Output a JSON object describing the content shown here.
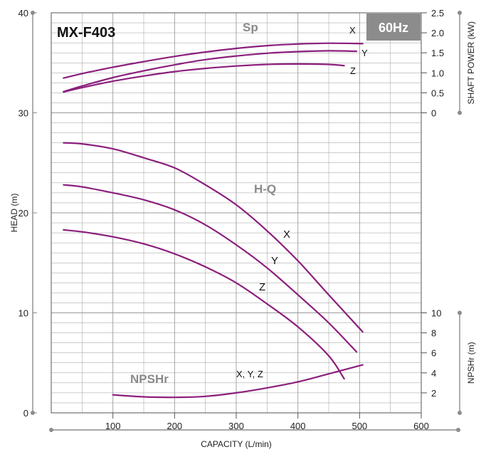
{
  "model_label": "MX-F403",
  "freq_label": "60Hz",
  "colors": {
    "curve": "#8b1f7c",
    "badge": "#8c8c8c",
    "grid": "#9a9a9a",
    "axis": "#8c8c8c"
  },
  "chart_data": {
    "type": "line",
    "xlabel": "CAPACITY (L/min)",
    "ylabel_left": "HEAD (m)",
    "ylabel_right_top": "SHAFT POWER (kW)",
    "ylabel_right_bottom": "NPSHr (m)",
    "xlim": [
      0,
      600
    ],
    "ylim_head": [
      0,
      40
    ],
    "ylim_power": [
      0,
      2.5
    ],
    "ylim_npshr": [
      0,
      10
    ],
    "x_ticks": [
      "100",
      "200",
      "300",
      "400",
      "500",
      "600"
    ],
    "head_ticks": [
      "0",
      "10",
      "20",
      "30",
      "40"
    ],
    "power_ticks": [
      "0",
      "0.5",
      "1.0",
      "1.5",
      "2.0",
      "2.5"
    ],
    "npshr_ticks": [
      "2",
      "4",
      "6",
      "8",
      "10"
    ],
    "grid": true,
    "group_labels": {
      "sp": "Sp",
      "hq": "H-Q",
      "npshr": "NPSHr"
    },
    "curve_labels": {
      "x": "X",
      "y": "Y",
      "z": "Z",
      "npshr": "X, Y, Z"
    },
    "head_series": [
      {
        "name": "X",
        "x": [
          20,
          50,
          100,
          150,
          200,
          250,
          300,
          350,
          400,
          450,
          505
        ],
        "y": [
          27.0,
          26.9,
          26.4,
          25.5,
          24.5,
          22.8,
          20.8,
          18.2,
          15.2,
          11.8,
          8.1
        ]
      },
      {
        "name": "Y",
        "x": [
          20,
          50,
          100,
          150,
          200,
          250,
          300,
          350,
          400,
          450,
          495
        ],
        "y": [
          22.8,
          22.6,
          22.0,
          21.3,
          20.3,
          18.8,
          16.8,
          14.5,
          11.8,
          9.0,
          6.1
        ]
      },
      {
        "name": "Z",
        "x": [
          20,
          50,
          100,
          150,
          200,
          250,
          300,
          350,
          400,
          450,
          475
        ],
        "y": [
          18.3,
          18.1,
          17.6,
          16.9,
          15.9,
          14.6,
          13.0,
          10.9,
          8.6,
          5.7,
          3.4
        ]
      }
    ],
    "power_series": [
      {
        "name": "X",
        "x": [
          20,
          50,
          100,
          150,
          200,
          250,
          300,
          350,
          400,
          450,
          505
        ],
        "y": [
          0.87,
          0.98,
          1.14,
          1.28,
          1.41,
          1.52,
          1.61,
          1.68,
          1.72,
          1.74,
          1.73
        ]
      },
      {
        "name": "Y",
        "x": [
          20,
          50,
          100,
          150,
          200,
          250,
          300,
          350,
          400,
          450,
          495
        ],
        "y": [
          0.53,
          0.67,
          0.88,
          1.05,
          1.2,
          1.33,
          1.42,
          1.49,
          1.53,
          1.55,
          1.54
        ]
      },
      {
        "name": "Z",
        "x": [
          20,
          50,
          100,
          150,
          200,
          250,
          300,
          350,
          400,
          450,
          475
        ],
        "y": [
          0.52,
          0.63,
          0.79,
          0.92,
          1.03,
          1.11,
          1.17,
          1.21,
          1.22,
          1.21,
          1.18
        ]
      }
    ],
    "npshr_series": [
      {
        "name": "X, Y, Z",
        "x": [
          100,
          150,
          200,
          250,
          300,
          350,
          400,
          450,
          505
        ],
        "y": [
          1.8,
          1.6,
          1.55,
          1.65,
          2.0,
          2.5,
          3.1,
          3.9,
          4.8
        ]
      }
    ]
  }
}
